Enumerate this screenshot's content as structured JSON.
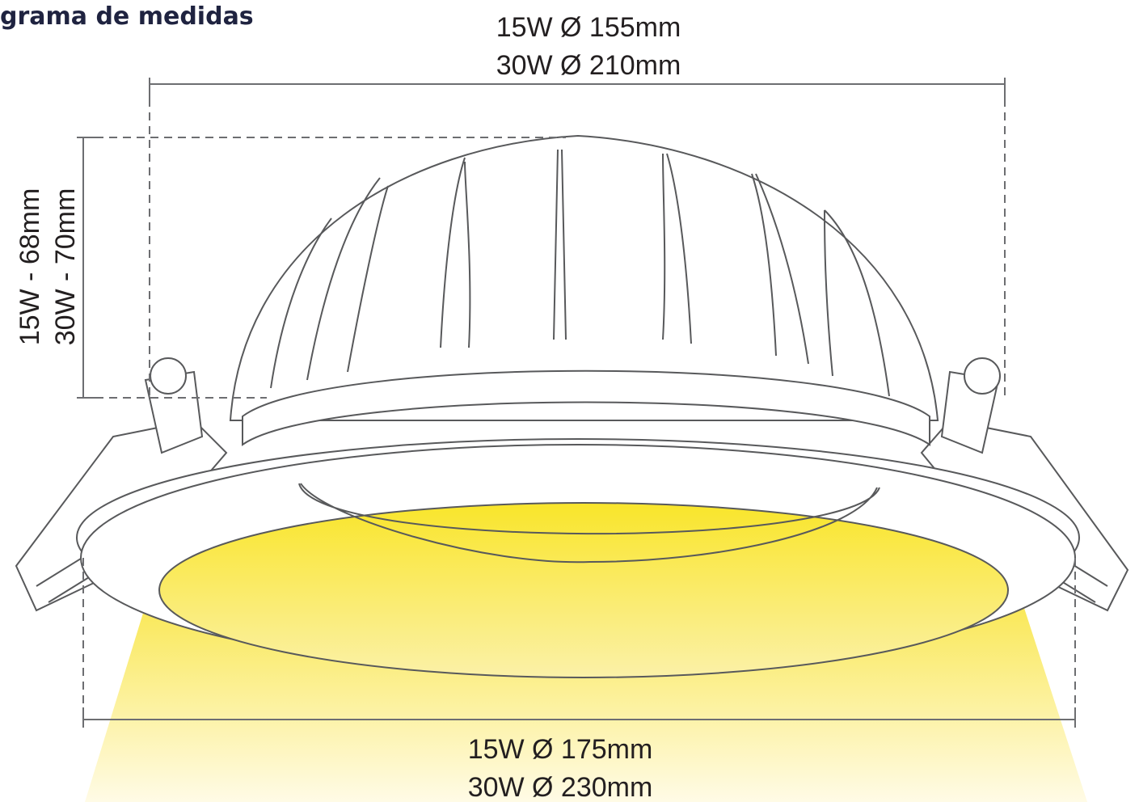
{
  "header": {
    "title": "grama de medidas"
  },
  "dimensions": {
    "top_diameter": [
      "15W Ø 155mm",
      "30W Ø 210mm"
    ],
    "height": [
      "15W - 68mm",
      "30W - 70mm"
    ],
    "bottom_diameter": [
      "15W Ø 175mm",
      "30W Ø 230mm"
    ]
  }
}
